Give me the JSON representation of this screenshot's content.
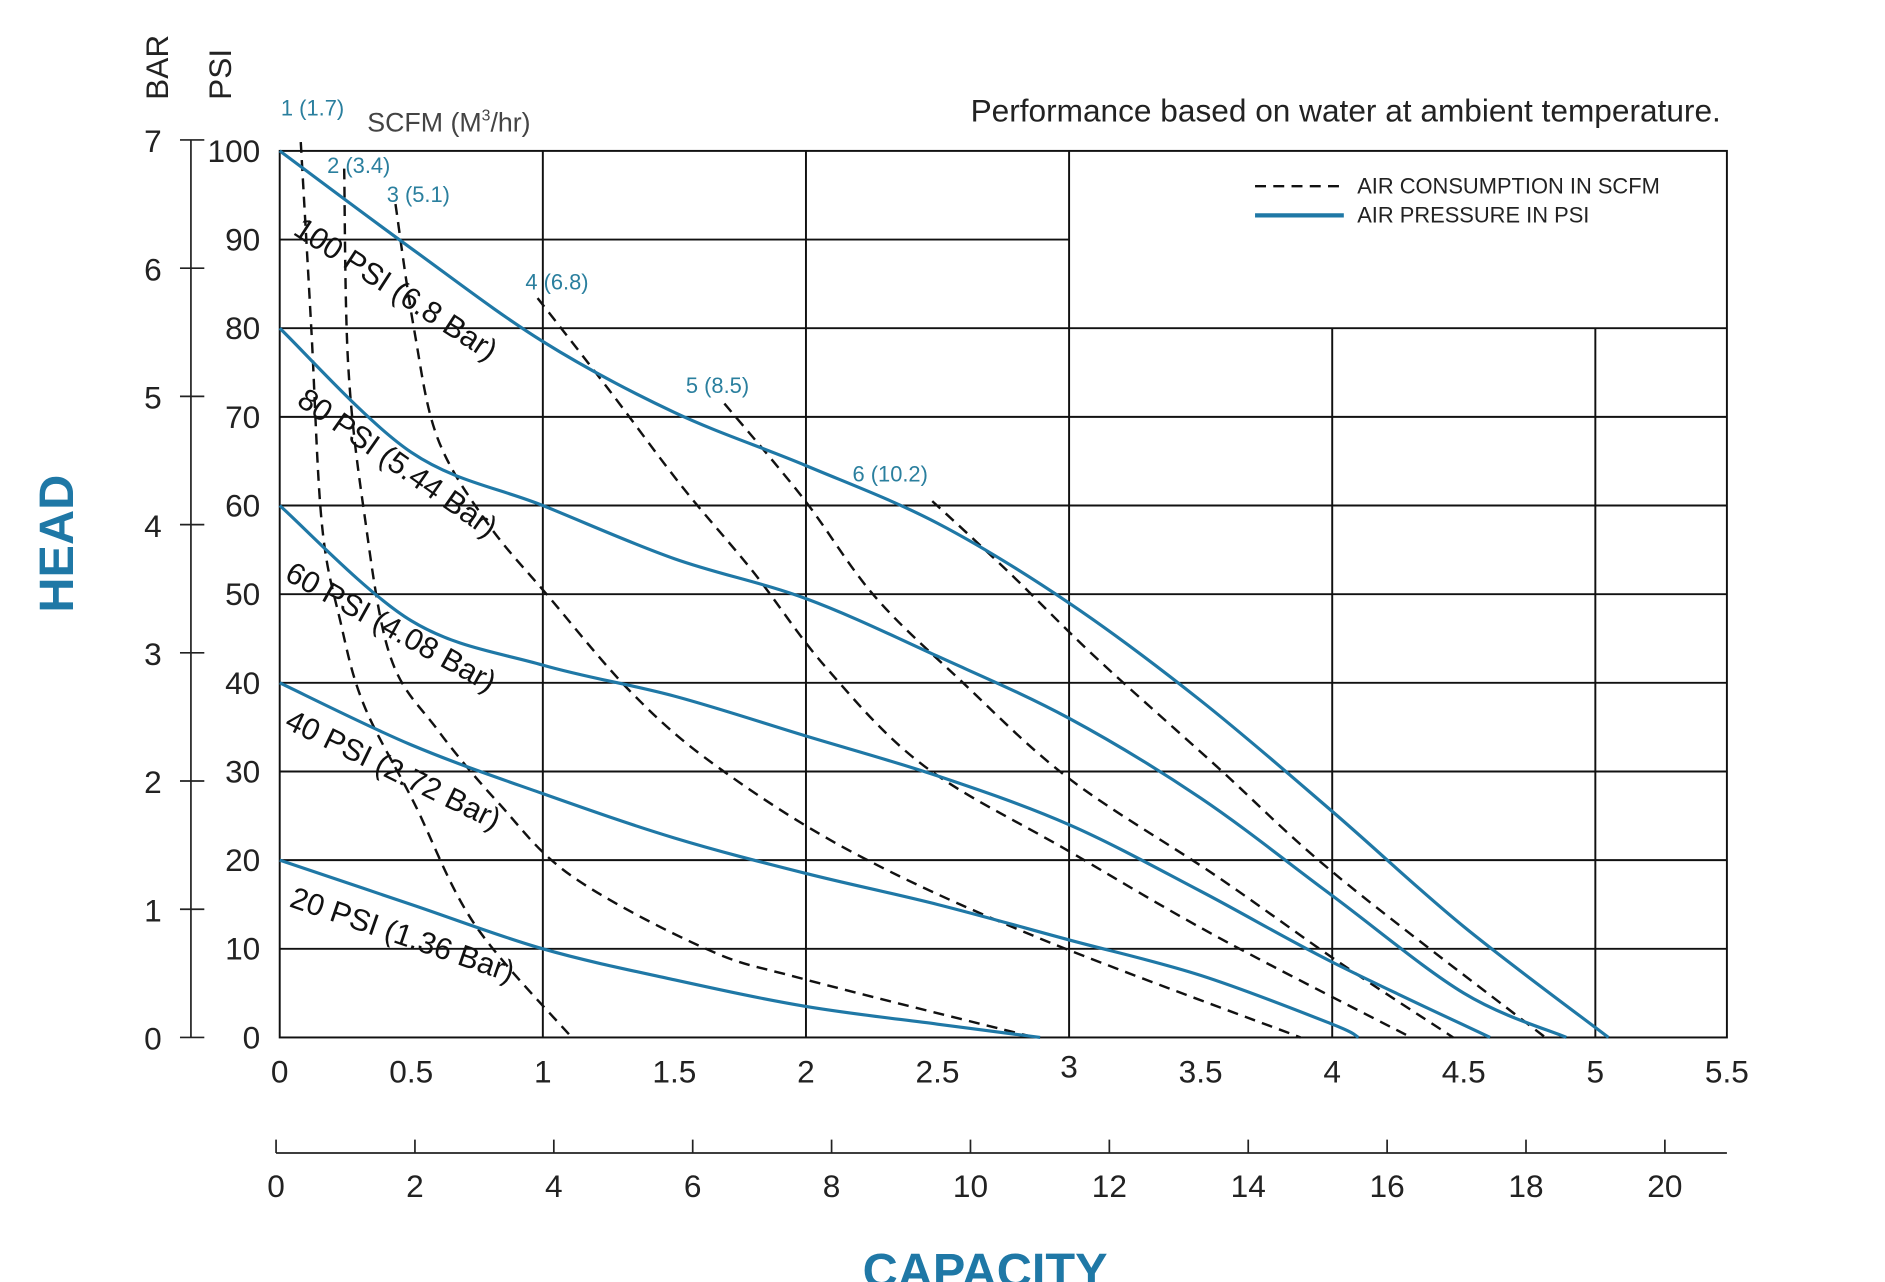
{
  "chart_data": {
    "type": "line",
    "title": "Performance based on water at ambient temperature.",
    "xlabel": "CAPACITY",
    "ylabel": "HEAD",
    "left_axis_units": [
      "BAR",
      "PSI"
    ],
    "scfm_unit_label": "SCFM (M3/hr)",
    "scfm_unit_label_base": "SCFM (M",
    "scfm_unit_label_sup": "3",
    "scfm_unit_label_end": "/hr)",
    "xlim": [
      0,
      5.5
    ],
    "ylim": [
      0,
      100
    ],
    "grid": true,
    "legend_position": "top-right",
    "legend": [
      {
        "label": "AIR CONSUMPTION IN SCFM",
        "style": "dashed"
      },
      {
        "label": "AIR PRESSURE IN PSI",
        "style": "solid"
      }
    ],
    "x_ticks_top": [
      "0",
      "0.5",
      "1",
      "1.5",
      "2",
      "2.5",
      "3",
      "3.5",
      "4",
      "4.5",
      "5",
      "5.5"
    ],
    "x_ticks_bottom": [
      "0",
      "2",
      "4",
      "6",
      "8",
      "10",
      "12",
      "14",
      "16",
      "18",
      "20"
    ],
    "psi_ticks": [
      "0",
      "10",
      "20",
      "30",
      "40",
      "50",
      "60",
      "70",
      "80",
      "90",
      "100"
    ],
    "bar_ticks": [
      "0",
      "1",
      "2",
      "3",
      "4",
      "5",
      "6",
      "7"
    ],
    "pressure_series": [
      {
        "name": "100 PSI (6.8 Bar)",
        "x": [
          0,
          0.5,
          1,
          1.5,
          2,
          2.5,
          3,
          3.5,
          4,
          4.5,
          5.05
        ],
        "y": [
          100,
          89,
          78.5,
          70.5,
          64.5,
          58,
          49,
          38,
          25.5,
          12.5,
          0
        ]
      },
      {
        "name": "80 PSI (5.44 Bar)",
        "x": [
          0,
          0.5,
          1,
          1.5,
          2,
          2.5,
          3,
          3.5,
          4,
          4.5,
          4.89
        ],
        "y": [
          80,
          66,
          60,
          54,
          49.5,
          43,
          36,
          27,
          16,
          5,
          0
        ]
      },
      {
        "name": "60 PSI (4.08 Bar)",
        "x": [
          0,
          0.5,
          1,
          1.5,
          2,
          2.5,
          3,
          3.5,
          4,
          4.6
        ],
        "y": [
          60,
          47,
          42,
          38.5,
          34,
          29.5,
          24,
          16.5,
          8.5,
          0
        ]
      },
      {
        "name": "40 PSI (2.72 Bar)",
        "x": [
          0,
          0.5,
          1,
          1.5,
          2,
          2.5,
          3,
          3.5,
          4,
          4.1
        ],
        "y": [
          40,
          33,
          27.5,
          22.5,
          18.5,
          15,
          11,
          7,
          1.5,
          0
        ]
      },
      {
        "name": "20 PSI (1.36 Bar)",
        "x": [
          0,
          0.5,
          1,
          1.5,
          2,
          2.5,
          2.89
        ],
        "y": [
          20,
          15,
          10,
          6.5,
          3.5,
          1.5,
          0
        ]
      }
    ],
    "air_consumption_series": [
      {
        "name": "1 (1.7)",
        "x": [
          0.08,
          0.12,
          0.16,
          0.23,
          0.32,
          0.51,
          0.74,
          1.11
        ],
        "y": [
          101,
          80,
          58,
          47,
          37.5,
          26.5,
          12.8,
          0
        ]
      },
      {
        "name": "2 (3.4)",
        "x": [
          0.245,
          0.26,
          0.32,
          0.42,
          0.6,
          0.83,
          1.11,
          1.62,
          1.99,
          2.87
        ],
        "y": [
          98,
          76,
          59.4,
          43,
          34.7,
          26.5,
          18.2,
          10,
          6.6,
          0
        ]
      },
      {
        "name": "3 (5.1)",
        "x": [
          0.44,
          0.51,
          0.6,
          0.79,
          1.02,
          1.34,
          1.66,
          2.17,
          2.87,
          3.88
        ],
        "y": [
          94,
          80,
          67.6,
          58,
          49.8,
          38.8,
          30.6,
          21,
          11.4,
          0
        ]
      },
      {
        "name": "4 (6.8)",
        "x": [
          0.98,
          1.25,
          1.53,
          1.8,
          2.08,
          2.45,
          3.0,
          3.56,
          4.3
        ],
        "y": [
          83.4,
          73.1,
          62.1,
          52.5,
          41.6,
          30.6,
          21,
          11.4,
          0
        ]
      },
      {
        "name": "5 (8.5)",
        "x": [
          1.69,
          1.99,
          2.26,
          2.59,
          3.0,
          3.56,
          4.02,
          4.46
        ],
        "y": [
          71.5,
          60.8,
          49.8,
          40.2,
          29.2,
          18.2,
          8.6,
          0
        ]
      },
      {
        "name": "6 (10.2)",
        "x": [
          2.48,
          2.77,
          3.1,
          3.56,
          4.02,
          4.81
        ],
        "y": [
          60.5,
          52.5,
          42.9,
          30.6,
          18.2,
          0
        ]
      }
    ]
  }
}
